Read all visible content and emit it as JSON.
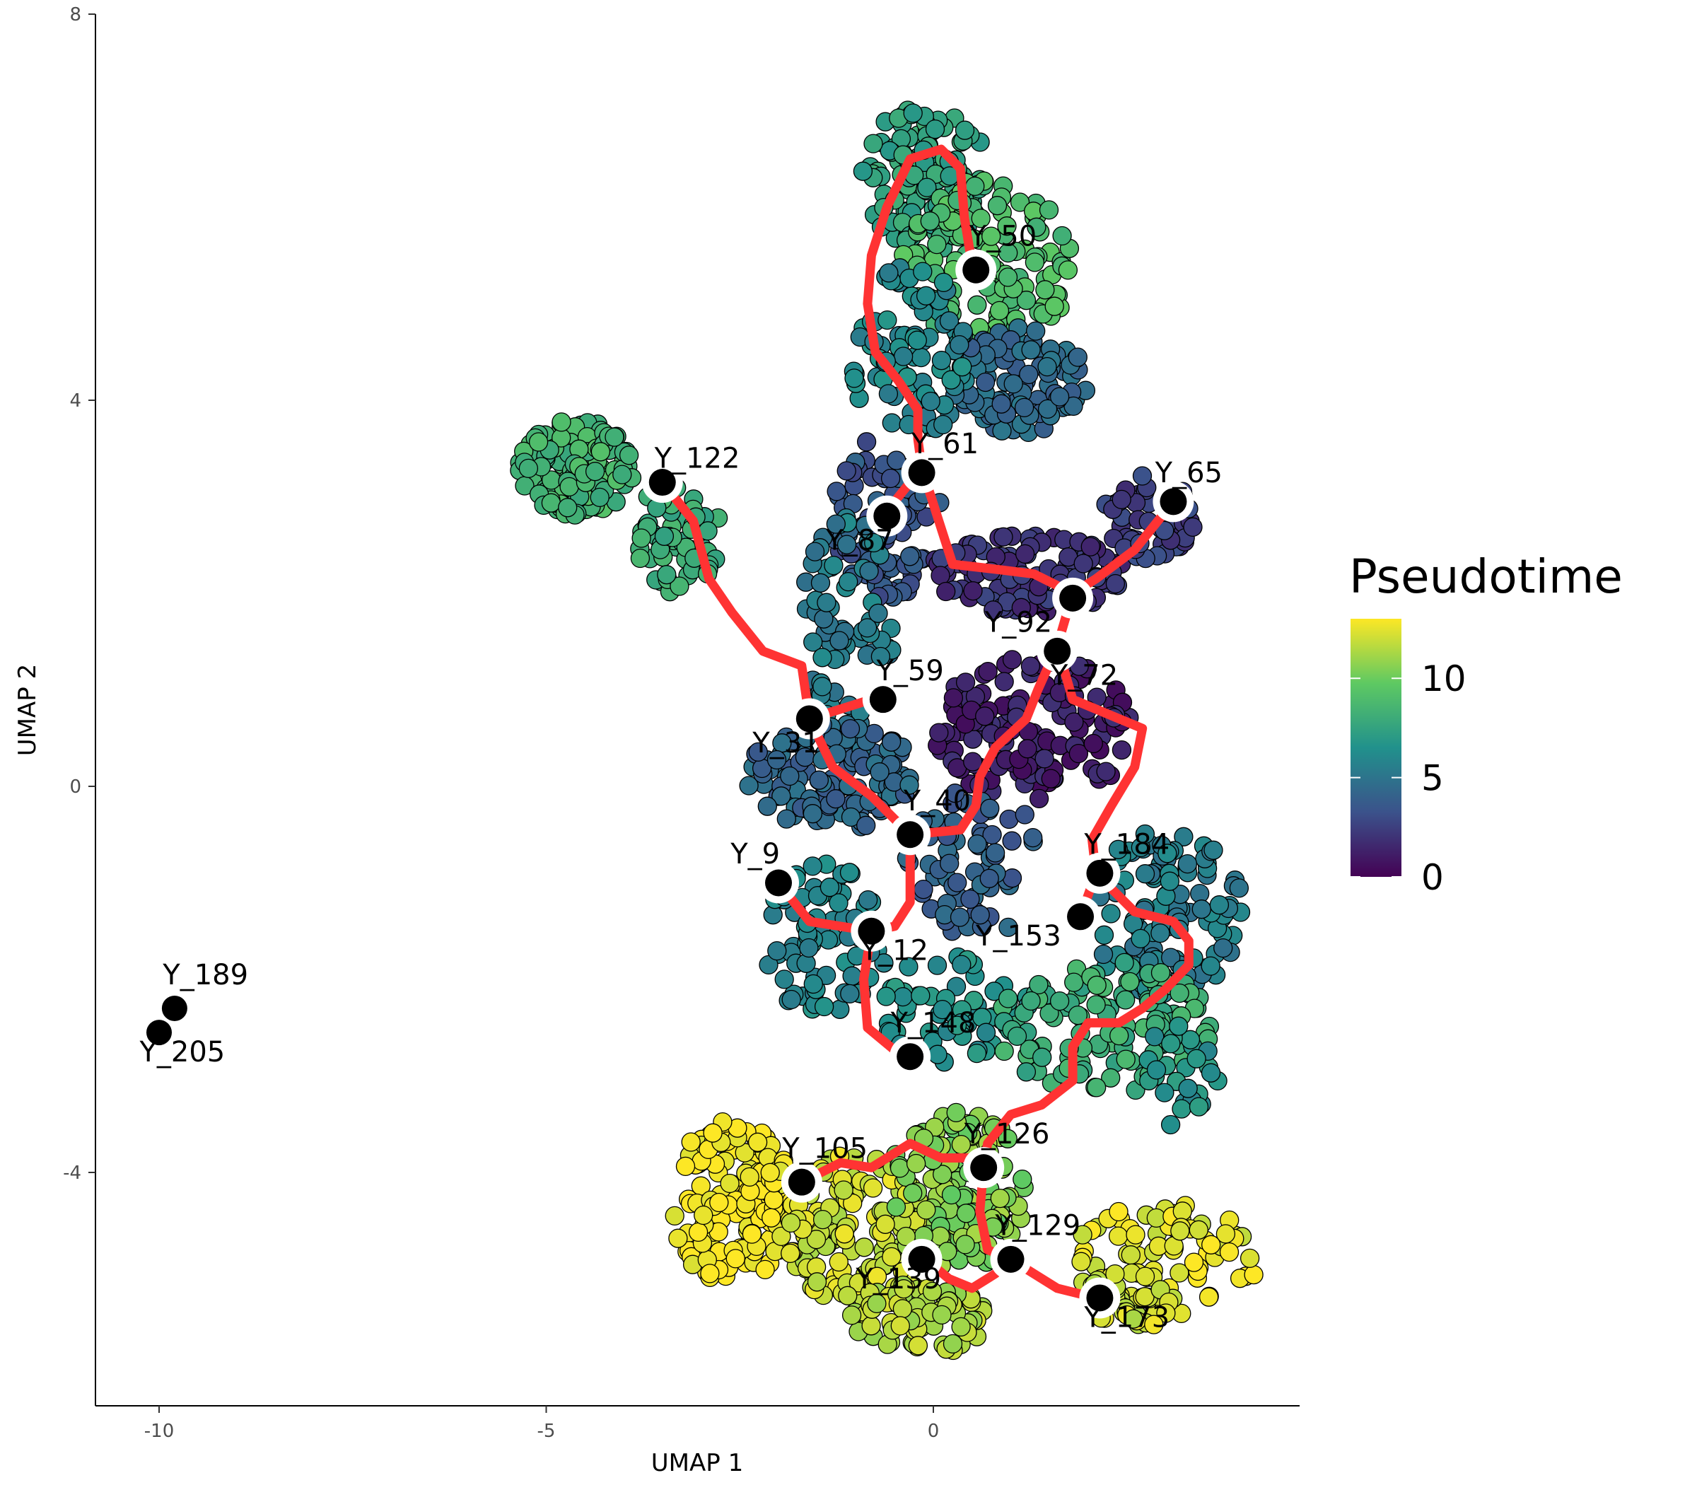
{
  "chart_data": {
    "type": "scatter",
    "xlabel": "UMAP 1",
    "ylabel": "UMAP 2",
    "xlim": [
      -11,
      4.5
    ],
    "ylim": [
      -6.5,
      8
    ],
    "xticks": [
      -10,
      -5,
      0
    ],
    "yticks": [
      -4,
      0,
      4,
      8
    ],
    "xtick_labels": [
      "-10",
      "-5",
      "0"
    ],
    "ytick_labels": [
      "-4",
      "0",
      "4",
      "8"
    ],
    "grid": false,
    "legend": {
      "title": "Pseudotime",
      "placement": "right",
      "range": [
        0,
        13
      ],
      "ticks": [
        0,
        5,
        10
      ],
      "tick_labels": [
        "0",
        "5",
        "10"
      ],
      "colormap": [
        "#440154",
        "#3b528b",
        "#21918c",
        "#5ec962",
        "#fde725"
      ]
    },
    "cell_clusters": [
      {
        "cx": -0.1,
        "cy": 6.3,
        "rx": 0.85,
        "ry": 0.75,
        "n": 130,
        "t": 7.5
      },
      {
        "cx": 0.7,
        "cy": 5.4,
        "rx": 1.1,
        "ry": 0.9,
        "n": 120,
        "t": 9.0
      },
      {
        "cx": 1.1,
        "cy": 4.2,
        "rx": 0.9,
        "ry": 0.55,
        "n": 100,
        "t": 4.5
      },
      {
        "cx": -0.3,
        "cy": 4.5,
        "rx": 0.8,
        "ry": 0.9,
        "n": 90,
        "t": 6.0
      },
      {
        "cx": -4.6,
        "cy": 3.3,
        "rx": 0.75,
        "ry": 0.5,
        "n": 130,
        "t": 8.5
      },
      {
        "cx": -3.3,
        "cy": 2.6,
        "rx": 0.55,
        "ry": 0.6,
        "n": 60,
        "t": 8.0
      },
      {
        "cx": -0.6,
        "cy": 2.8,
        "rx": 0.7,
        "ry": 0.85,
        "n": 90,
        "t": 3.5
      },
      {
        "cx": 1.2,
        "cy": 2.2,
        "rx": 1.3,
        "ry": 0.4,
        "n": 110,
        "t": 2.0
      },
      {
        "cx": 2.8,
        "cy": 2.8,
        "rx": 0.6,
        "ry": 0.45,
        "n": 50,
        "t": 2.5
      },
      {
        "cx": -1.1,
        "cy": 1.7,
        "rx": 0.6,
        "ry": 1.1,
        "n": 70,
        "t": 5.5
      },
      {
        "cx": 1.3,
        "cy": 0.6,
        "rx": 1.3,
        "ry": 0.75,
        "n": 140,
        "t": 1.2
      },
      {
        "cx": -1.3,
        "cy": 0.1,
        "rx": 1.1,
        "ry": 0.55,
        "n": 130,
        "t": 4.3
      },
      {
        "cx": 0.5,
        "cy": -0.8,
        "rx": 0.9,
        "ry": 0.8,
        "n": 70,
        "t": 4.0
      },
      {
        "cx": 3.0,
        "cy": -1.3,
        "rx": 1.0,
        "ry": 0.9,
        "n": 120,
        "t": 5.5
      },
      {
        "cx": -1.4,
        "cy": -1.6,
        "rx": 0.8,
        "ry": 0.8,
        "n": 80,
        "t": 6.0
      },
      {
        "cx": 0.3,
        "cy": -2.3,
        "rx": 1.0,
        "ry": 0.6,
        "n": 60,
        "t": 6.5
      },
      {
        "cx": 2.2,
        "cy": -2.5,
        "rx": 1.4,
        "ry": 0.7,
        "n": 120,
        "t": 8.0
      },
      {
        "cx": 3.2,
        "cy": -3.0,
        "rx": 0.5,
        "ry": 0.6,
        "n": 25,
        "t": 6.5
      },
      {
        "cx": -2.6,
        "cy": -4.3,
        "rx": 0.8,
        "ry": 0.85,
        "n": 150,
        "t": 13.0
      },
      {
        "cx": -1.0,
        "cy": -4.6,
        "rx": 0.9,
        "ry": 0.8,
        "n": 140,
        "t": 12.0
      },
      {
        "cx": 0.3,
        "cy": -4.2,
        "rx": 0.9,
        "ry": 0.85,
        "n": 130,
        "t": 10.5
      },
      {
        "cx": -0.2,
        "cy": -5.5,
        "rx": 0.9,
        "ry": 0.4,
        "n": 80,
        "t": 11.5
      },
      {
        "cx": 3.0,
        "cy": -4.9,
        "rx": 1.2,
        "ry": 0.6,
        "n": 80,
        "t": 12.5
      },
      {
        "cx": 2.6,
        "cy": -5.3,
        "rx": 0.7,
        "ry": 0.3,
        "n": 40,
        "t": 12.0
      }
    ],
    "trajectory": [
      [
        [
          0.5,
          5.4
        ],
        [
          0.4,
          5.9
        ],
        [
          0.35,
          6.4
        ],
        [
          0.1,
          6.6
        ],
        [
          -0.3,
          6.5
        ],
        [
          -0.6,
          6.0
        ],
        [
          -0.8,
          5.5
        ],
        [
          -0.85,
          5.0
        ],
        [
          -0.75,
          4.5
        ],
        [
          -0.45,
          4.2
        ],
        [
          -0.2,
          3.9
        ],
        [
          -0.2,
          3.6
        ],
        [
          -0.15,
          3.3
        ]
      ],
      [
        [
          -0.15,
          3.3
        ],
        [
          -0.6,
          2.85
        ]
      ],
      [
        [
          -0.15,
          3.3
        ],
        [
          0.05,
          2.8
        ],
        [
          0.25,
          2.3
        ],
        [
          0.8,
          2.25
        ],
        [
          1.3,
          2.2
        ],
        [
          1.8,
          2.0
        ]
      ],
      [
        [
          3.1,
          2.95
        ],
        [
          2.6,
          2.45
        ],
        [
          2.1,
          2.15
        ],
        [
          1.8,
          2.0
        ]
      ],
      [
        [
          1.8,
          2.0
        ],
        [
          1.6,
          1.45
        ]
      ],
      [
        [
          1.6,
          1.45
        ],
        [
          1.35,
          1.0
        ],
        [
          1.2,
          0.7
        ],
        [
          0.8,
          0.4
        ],
        [
          0.6,
          0.1
        ],
        [
          0.55,
          -0.2
        ],
        [
          0.35,
          -0.45
        ],
        [
          -0.3,
          -0.5
        ]
      ],
      [
        [
          1.6,
          1.45
        ],
        [
          1.8,
          0.9
        ],
        [
          2.4,
          0.7
        ],
        [
          2.7,
          0.6
        ],
        [
          2.6,
          0.2
        ],
        [
          2.3,
          -0.2
        ],
        [
          2.05,
          -0.55
        ],
        [
          2.1,
          -0.9
        ]
      ],
      [
        [
          2.1,
          -0.9
        ],
        [
          1.9,
          -1.35
        ]
      ],
      [
        [
          2.1,
          -0.9
        ],
        [
          2.6,
          -1.3
        ],
        [
          3.1,
          -1.4
        ],
        [
          3.3,
          -1.6
        ],
        [
          3.3,
          -1.85
        ],
        [
          3.0,
          -2.1
        ],
        [
          2.7,
          -2.3
        ],
        [
          2.4,
          -2.45
        ],
        [
          2.0,
          -2.45
        ],
        [
          1.8,
          -2.7
        ],
        [
          1.8,
          -3.05
        ],
        [
          1.4,
          -3.3
        ],
        [
          1.0,
          -3.4
        ],
        [
          0.7,
          -3.7
        ],
        [
          0.65,
          -3.95
        ]
      ],
      [
        [
          -3.5,
          3.15
        ],
        [
          -3.1,
          2.75
        ],
        [
          -2.9,
          2.15
        ],
        [
          -2.6,
          1.8
        ],
        [
          -2.2,
          1.4
        ],
        [
          -1.7,
          1.25
        ],
        [
          -1.6,
          0.7
        ]
      ],
      [
        [
          -1.6,
          0.7
        ],
        [
          -0.8,
          0.9
        ]
      ],
      [
        [
          -1.6,
          0.7
        ],
        [
          -1.3,
          0.2
        ],
        [
          -0.8,
          -0.1
        ],
        [
          -0.3,
          -0.5
        ]
      ],
      [
        [
          -0.3,
          -0.5
        ],
        [
          -0.3,
          -1.2
        ],
        [
          -0.5,
          -1.45
        ],
        [
          -0.8,
          -1.5
        ]
      ],
      [
        [
          -2.0,
          -1.0
        ],
        [
          -1.6,
          -1.4
        ],
        [
          -0.8,
          -1.5
        ]
      ],
      [
        [
          -0.8,
          -1.5
        ],
        [
          -0.9,
          -2.0
        ],
        [
          -0.85,
          -2.5
        ],
        [
          -0.4,
          -2.8
        ]
      ],
      [
        [
          0.65,
          -3.95
        ],
        [
          0.5,
          -3.85
        ],
        [
          0.1,
          -3.85
        ],
        [
          -0.3,
          -3.7
        ],
        [
          -0.8,
          -3.95
        ],
        [
          -1.2,
          -3.9
        ],
        [
          -1.7,
          -4.1
        ]
      ],
      [
        [
          0.65,
          -3.95
        ],
        [
          0.6,
          -4.4
        ],
        [
          0.7,
          -4.8
        ],
        [
          1.0,
          -4.9
        ]
      ],
      [
        [
          1.0,
          -4.9
        ],
        [
          0.8,
          -5.05
        ],
        [
          0.5,
          -5.2
        ],
        [
          0.2,
          -5.1
        ],
        [
          -0.1,
          -4.9
        ]
      ],
      [
        [
          1.0,
          -4.9
        ],
        [
          1.6,
          -5.2
        ],
        [
          2.1,
          -5.3
        ]
      ]
    ],
    "nodes": [
      {
        "label": "Y_50",
        "x": 0.55,
        "y": 5.35,
        "lx": 0.9,
        "ly": 5.6
      },
      {
        "label": "Y_61",
        "x": -0.15,
        "y": 3.25,
        "lx": 0.15,
        "ly": 3.45
      },
      {
        "label": "Y_122",
        "x": -3.5,
        "y": 3.15,
        "lx": -3.05,
        "ly": 3.3
      },
      {
        "label": "Y_87",
        "x": -0.6,
        "y": 2.8,
        "lx": -0.95,
        "ly": 2.45
      },
      {
        "label": "Y_65",
        "x": 3.1,
        "y": 2.95,
        "lx": 3.3,
        "ly": 3.15
      },
      {
        "label": "Y_92",
        "x": 1.8,
        "y": 1.95,
        "lx": 1.1,
        "ly": 1.6
      },
      {
        "label": "Y_72",
        "x": 1.6,
        "y": 1.4,
        "lx": 1.95,
        "ly": 1.05
      },
      {
        "label": "Y_59",
        "x": -0.65,
        "y": 0.9,
        "lx": -0.3,
        "ly": 1.1
      },
      {
        "label": "Y_31",
        "x": -1.6,
        "y": 0.7,
        "lx": -1.9,
        "ly": 0.35
      },
      {
        "label": "Y_40",
        "x": -0.3,
        "y": -0.5,
        "lx": 0.05,
        "ly": -0.25
      },
      {
        "label": "Y_184",
        "x": 2.15,
        "y": -0.9,
        "lx": 2.5,
        "ly": -0.7
      },
      {
        "label": "Y_9",
        "x": -2.0,
        "y": -1.0,
        "lx": -2.3,
        "ly": -0.8
      },
      {
        "label": "Y_153",
        "x": 1.9,
        "y": -1.35,
        "lx": 1.1,
        "ly": -1.65
      },
      {
        "label": "Y_12",
        "x": -0.8,
        "y": -1.5,
        "lx": -0.5,
        "ly": -1.8
      },
      {
        "label": "Y_148",
        "x": -0.3,
        "y": -2.8,
        "lx": 0.0,
        "ly": -2.55
      },
      {
        "label": "Y_189",
        "x": -9.8,
        "y": -2.3,
        "lx": -9.4,
        "ly": -2.05
      },
      {
        "label": "Y_205",
        "x": -10.0,
        "y": -2.55,
        "lx": -9.7,
        "ly": -2.85
      },
      {
        "label": "Y_126",
        "x": 0.65,
        "y": -3.95,
        "lx": 0.95,
        "ly": -3.7
      },
      {
        "label": "Y_105",
        "x": -1.7,
        "y": -4.1,
        "lx": -1.4,
        "ly": -3.85
      },
      {
        "label": "Y_129",
        "x": 1.0,
        "y": -4.9,
        "lx": 1.35,
        "ly": -4.65
      },
      {
        "label": "Y_139",
        "x": -0.15,
        "y": -4.9,
        "lx": -0.45,
        "ly": -5.2
      },
      {
        "label": "Y_173",
        "x": 2.15,
        "y": -5.3,
        "lx": 2.5,
        "ly": -5.6
      }
    ]
  }
}
